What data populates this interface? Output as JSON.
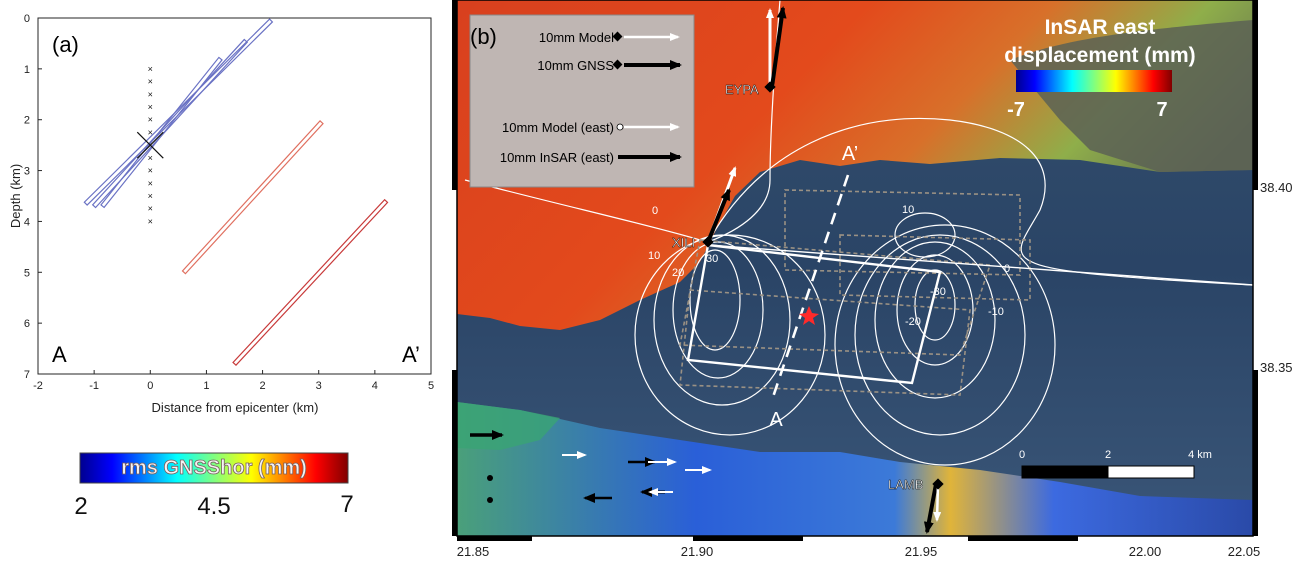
{
  "panel_a": {
    "label": "(a)",
    "ylabel": "Depth (km)",
    "xlabel": "Distance from epicenter (km)",
    "end_left": "A",
    "end_right": "A’",
    "colorbar_title": "rms GNSShor (mm)",
    "colorbar_ticks": [
      "2",
      "4.5",
      "7"
    ]
  },
  "panel_b": {
    "label": "(b)",
    "colorbar_title_line1": "InSAR east",
    "colorbar_title_line2": "displacement (mm)",
    "colorbar_min": "-7",
    "colorbar_max": "7",
    "legend": [
      {
        "label": "10mm Model",
        "marker": "diamond",
        "arrow_color": "#ffffff"
      },
      {
        "label": "10mm GNSS",
        "marker": "diamond",
        "arrow_color": "#000000"
      },
      {
        "label": "10mm Model (east)",
        "marker": "circle",
        "arrow_color": "#ffffff"
      },
      {
        "label": "10mm InSAR (east)",
        "marker": "circle",
        "arrow_color": "#000000"
      }
    ],
    "stations": [
      "EYPA",
      "XILI",
      "LAMB"
    ],
    "profile_start": "A",
    "profile_end": "A’",
    "contour_labels": [
      "0",
      "10",
      "20",
      "-10",
      "-20",
      "30",
      "10",
      "0",
      "-30"
    ],
    "scalebar_ticks": [
      "0",
      "2",
      "4 km"
    ],
    "lon_ticks": [
      "21.85",
      "21.90",
      "21.95",
      "22.00",
      "22.05"
    ],
    "lat_ticks": [
      "38.40",
      "38.35"
    ]
  },
  "chart_data": {
    "type": "scatter",
    "xlim": [
      -2,
      5
    ],
    "ylim": [
      7,
      0
    ],
    "xticks": [
      -2,
      -1,
      0,
      1,
      2,
      3,
      4,
      5
    ],
    "yticks": [
      0,
      1,
      2,
      3,
      4,
      5,
      6,
      7
    ],
    "xlabel": "Distance from epicenter (km)",
    "ylabel": "Depth (km)",
    "fault_planes": [
      {
        "color": "#6a72c4",
        "x": [
          -1.15,
          2.15
        ],
        "y": [
          3.65,
          0.05
        ]
      },
      {
        "color": "#6a72c4",
        "x": [
          -1.0,
          1.7
        ],
        "y": [
          3.7,
          0.45
        ]
      },
      {
        "color": "#6a72c4",
        "x": [
          -0.85,
          1.25
        ],
        "y": [
          3.7,
          0.8
        ]
      },
      {
        "color": "#e07060",
        "x": [
          0.6,
          3.05
        ],
        "y": [
          5.0,
          2.05
        ]
      },
      {
        "color": "#c83a3a",
        "x": [
          1.5,
          4.2
        ],
        "y": [
          6.8,
          3.6
        ]
      }
    ],
    "hypocenter_column": {
      "x": 0,
      "y": [
        1.0,
        1.25,
        1.5,
        1.75,
        2.0,
        2.25,
        2.5,
        2.75,
        3.0,
        3.25,
        3.5,
        3.75,
        4.0
      ]
    },
    "big_cross": {
      "x": 0,
      "y": 2.5
    }
  }
}
